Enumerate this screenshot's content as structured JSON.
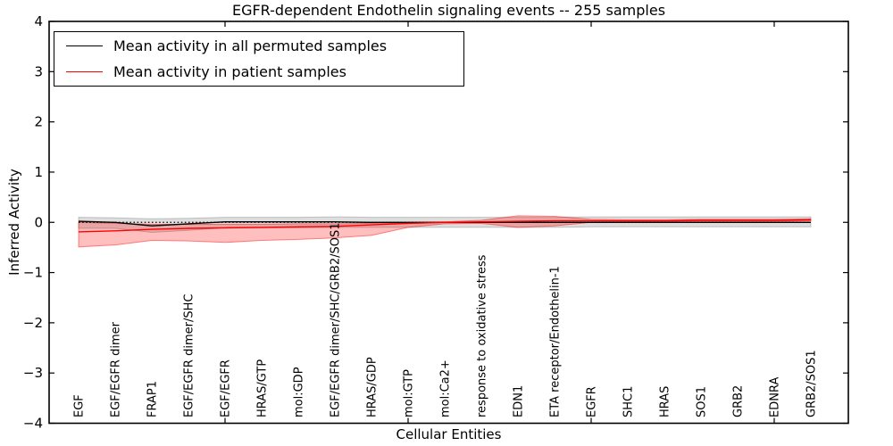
{
  "title": "EGFR-dependent Endothelin signaling events -- 255 samples",
  "axes": {
    "x_label": "Cellular Entities",
    "y_label": "Inferred Activity"
  },
  "legend": [
    {
      "label": "Mean activity in all permuted samples",
      "color": "#000000"
    },
    {
      "label": "Mean activity in patient samples",
      "color": "#ff0000"
    }
  ],
  "chart_data": {
    "type": "line",
    "title": "EGFR-dependent Endothelin signaling events -- 255 samples",
    "xlabel": "Cellular Entities",
    "ylabel": "Inferred Activity",
    "ylim": [
      -4,
      4
    ],
    "grid": false,
    "legend_position": "upper left",
    "zero_line": true,
    "categories": [
      "EGF",
      "EGF/EGFR dimer",
      "FRAP1",
      "EGF/EGFR dimer/SHC",
      "EGF/EGFR",
      "HRAS/GTP",
      "mol:GDP",
      "EGF/EGFR dimer/SHC/GRB2/SOS1",
      "HRAS/GDP",
      "mol:GTP",
      "mol:Ca2+",
      "response to oxidative stress",
      "EDN1",
      "ETA receptor/Endothelin-1",
      "EGFR",
      "SHC1",
      "HRAS",
      "SOS1",
      "GRB2",
      "EDNRA",
      "GRB2/SOS1"
    ],
    "y_ticks": [
      {
        "value": 4,
        "label": "4"
      },
      {
        "value": 3,
        "label": "3"
      },
      {
        "value": 2,
        "label": "2"
      },
      {
        "value": 1,
        "label": "1"
      },
      {
        "value": 0,
        "label": "0"
      },
      {
        "value": -1,
        "label": "−1"
      },
      {
        "value": -2,
        "label": "−2"
      },
      {
        "value": -3,
        "label": "−3"
      },
      {
        "value": -4,
        "label": "−4"
      }
    ],
    "x_major_tick_indices": [
      4,
      9,
      14,
      19
    ],
    "series": [
      {
        "name": "Mean activity in all permuted samples",
        "color": "#000000",
        "band_fill": "rgba(0,0,0,0.13)",
        "band_edge": "rgba(0,0,0,0.20)",
        "values": [
          0.02,
          0.0,
          -0.07,
          -0.03,
          0.01,
          0.01,
          0.01,
          0.01,
          0.0,
          0.0,
          0.0,
          0.0,
          0.0,
          0.0,
          0.0,
          0.0,
          0.0,
          0.0,
          0.0,
          0.0,
          0.0
        ],
        "band_upper": [
          0.1,
          0.09,
          0.07,
          0.08,
          0.1,
          0.1,
          0.1,
          0.11,
          0.1,
          0.1,
          0.1,
          0.1,
          0.1,
          0.1,
          0.11,
          0.11,
          0.11,
          0.11,
          0.11,
          0.11,
          0.11
        ],
        "band_lower": [
          -0.12,
          -0.12,
          -0.2,
          -0.16,
          -0.11,
          -0.11,
          -0.11,
          -0.1,
          -0.1,
          -0.1,
          -0.1,
          -0.1,
          -0.1,
          -0.1,
          -0.09,
          -0.09,
          -0.09,
          -0.09,
          -0.09,
          -0.09,
          -0.09
        ]
      },
      {
        "name": "Mean activity in patient samples",
        "color": "#ff0000",
        "band_fill": "rgba(255,0,0,0.25)",
        "band_edge": "rgba(255,0,0,0.45)",
        "values": [
          -0.19,
          -0.17,
          -0.14,
          -0.12,
          -0.11,
          -0.1,
          -0.09,
          -0.08,
          -0.05,
          -0.02,
          0.0,
          0.01,
          0.02,
          0.03,
          0.03,
          0.03,
          0.03,
          0.04,
          0.04,
          0.04,
          0.05
        ],
        "band_upper": [
          0.0,
          -0.02,
          -0.04,
          -0.04,
          -0.04,
          -0.04,
          -0.03,
          -0.03,
          -0.02,
          -0.01,
          0.01,
          0.04,
          0.13,
          0.12,
          0.06,
          0.05,
          0.05,
          0.06,
          0.06,
          0.06,
          0.07
        ],
        "band_lower": [
          -0.49,
          -0.45,
          -0.36,
          -0.37,
          -0.4,
          -0.36,
          -0.34,
          -0.31,
          -0.26,
          -0.1,
          -0.03,
          -0.02,
          -0.1,
          -0.07,
          0.0,
          0.01,
          0.01,
          0.02,
          0.02,
          0.02,
          0.03
        ]
      }
    ]
  }
}
